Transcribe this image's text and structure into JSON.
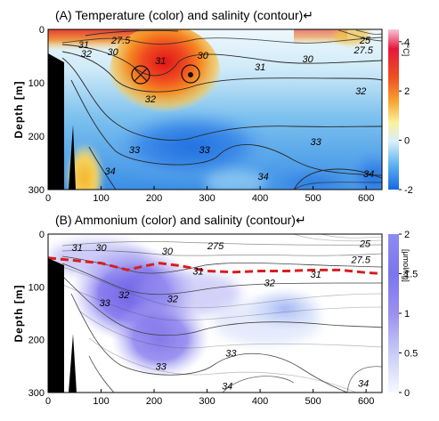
{
  "chart_data": [
    {
      "type": "heatmap",
      "title": "(A) Temperature (color) and salinity (contour)↵",
      "ylabel": "Depth [m]",
      "xlim": [
        0,
        630
      ],
      "ylim": [
        300,
        0
      ],
      "x_ticks": [
        "0",
        "100",
        "200",
        "300",
        "400",
        "500",
        "600"
      ],
      "y_ticks": [
        "0",
        "100",
        "200",
        "300"
      ],
      "colorbar": {
        "unit": "[°C]",
        "range": [
          -2,
          4.5
        ],
        "ticks": [
          "4",
          "2",
          "0",
          "-2"
        ],
        "tick_values": [
          4,
          2,
          0,
          -2
        ]
      },
      "contour_labels": [
        {
          "text": "27.5",
          "x": 137,
          "y": 20
        },
        {
          "text": "31",
          "x": 67,
          "y": 28
        },
        {
          "text": "30",
          "x": 122,
          "y": 42
        },
        {
          "text": "32",
          "x": 72,
          "y": 45
        },
        {
          "text": "31",
          "x": 212,
          "y": 58
        },
        {
          "text": "30",
          "x": 292,
          "y": 48
        },
        {
          "text": "31",
          "x": 400,
          "y": 70
        },
        {
          "text": "30",
          "x": 490,
          "y": 55
        },
        {
          "text": "25",
          "x": 598,
          "y": 20
        },
        {
          "text": "27.5",
          "x": 595,
          "y": 38
        },
        {
          "text": "32",
          "x": 193,
          "y": 130
        },
        {
          "text": "32",
          "x": 590,
          "y": 115
        },
        {
          "text": "33",
          "x": 163,
          "y": 225
        },
        {
          "text": "33",
          "x": 295,
          "y": 225
        },
        {
          "text": "33",
          "x": 505,
          "y": 210
        },
        {
          "text": "34",
          "x": 117,
          "y": 265
        },
        {
          "text": "34",
          "x": 406,
          "y": 275
        },
        {
          "text": "34",
          "x": 605,
          "y": 270
        }
      ],
      "markers": [
        {
          "symbol": "into-page (x)",
          "x": 173,
          "y": 92
        },
        {
          "symbol": "out-of-page (dot)",
          "x": 280,
          "y": 90
        }
      ]
    },
    {
      "type": "heatmap",
      "title": "(B) Ammonium (color) and salinity (contour)↵",
      "ylabel": "Depth [m]",
      "xlim": [
        0,
        630
      ],
      "ylim": [
        300,
        0
      ],
      "x_ticks": [
        "0",
        "100",
        "200",
        "300",
        "400",
        "500",
        "600"
      ],
      "y_ticks": [
        "0",
        "100",
        "200",
        "300"
      ],
      "colorbar": {
        "unit": "[μmol/kg]",
        "range": [
          0,
          2
        ],
        "ticks": [
          "2",
          "1.5",
          "1",
          "0.5",
          "0"
        ],
        "tick_values": [
          2,
          1.5,
          1,
          0.5,
          0
        ]
      },
      "contour_labels": [
        {
          "text": "31",
          "x": 55,
          "y": 25
        },
        {
          "text": "30",
          "x": 100,
          "y": 25
        },
        {
          "text": "30",
          "x": 225,
          "y": 32
        },
        {
          "text": "275",
          "x": 316,
          "y": 22
        },
        {
          "text": "25",
          "x": 598,
          "y": 18
        },
        {
          "text": "27.5",
          "x": 590,
          "y": 48
        },
        {
          "text": "31",
          "x": 283,
          "y": 70
        },
        {
          "text": "31",
          "x": 505,
          "y": 76
        },
        {
          "text": "32",
          "x": 143,
          "y": 115
        },
        {
          "text": "32",
          "x": 235,
          "y": 122
        },
        {
          "text": "32",
          "x": 418,
          "y": 92
        },
        {
          "text": "33",
          "x": 107,
          "y": 130
        },
        {
          "text": "33",
          "x": 345,
          "y": 225
        },
        {
          "text": "33",
          "x": 213,
          "y": 250
        },
        {
          "text": "34",
          "x": 338,
          "y": 287
        },
        {
          "text": "34",
          "x": 595,
          "y": 282
        }
      ],
      "dashed_line": {
        "x": [
          0,
          50,
          100,
          150,
          175,
          210,
          250,
          300,
          350,
          400,
          450,
          500,
          550,
          600,
          630
        ],
        "y": [
          45,
          50,
          55,
          68,
          62,
          55,
          60,
          70,
          72,
          70,
          70,
          68,
          68,
          73,
          75
        ]
      }
    }
  ]
}
